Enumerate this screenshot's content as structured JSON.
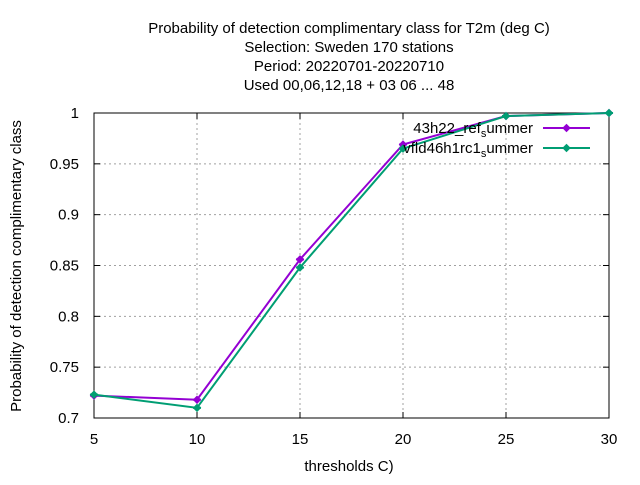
{
  "chart_data": {
    "type": "line",
    "title": [
      "Probability of detection complimentary class  for T2m (deg C)",
      "Selection: Sweden     170 stations",
      "Period: 20220701-20220710",
      "Used  00,06,12,18  + 03 06 ... 48"
    ],
    "xlabel": "thresholds C)",
    "ylabel": "Probability of detection complimentary class",
    "xlim": [
      5,
      30
    ],
    "ylim": [
      0.7,
      1.0
    ],
    "xticks": [
      5,
      10,
      15,
      20,
      25,
      30
    ],
    "yticks": [
      0.7,
      0.75,
      0.8,
      0.85,
      0.9,
      0.95,
      1.0
    ],
    "ytick_labels": [
      "0.7",
      "0.75",
      "0.8",
      "0.85",
      "0.9",
      "0.95",
      "1"
    ],
    "grid": true,
    "legend_position": "top-right",
    "x": [
      5,
      10,
      15,
      20,
      25,
      30
    ],
    "series": [
      {
        "name": "43h22_ref_summer",
        "legend_main": "43h22_ref",
        "legend_sub": "s",
        "legend_tail": "ummer",
        "color": "#9400d3",
        "values": [
          0.722,
          0.718,
          0.856,
          0.969,
          0.997,
          1.0
        ]
      },
      {
        "name": "vfld46h1rc1_summer",
        "legend_main": "vfld46h1rc1",
        "legend_sub": "s",
        "legend_tail": "ummer",
        "color": "#009e73",
        "values": [
          0.723,
          0.71,
          0.848,
          0.965,
          0.997,
          1.0
        ]
      }
    ]
  }
}
